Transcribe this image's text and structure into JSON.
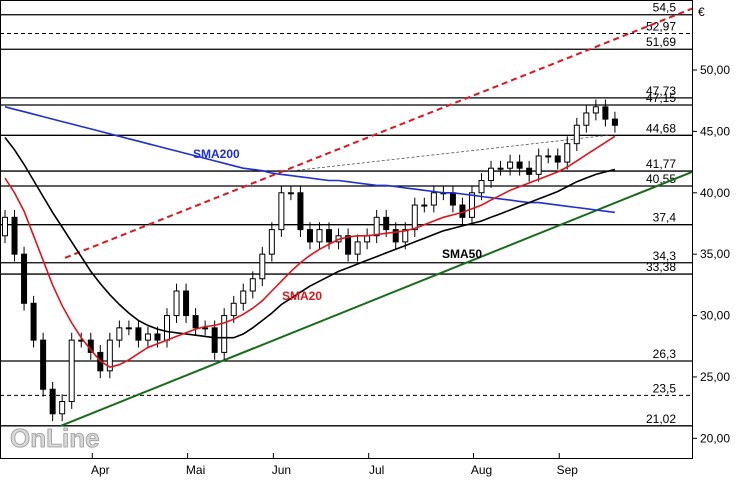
{
  "chart_data": {
    "type": "candlestick",
    "currency": "€",
    "watermark": "OnLine",
    "categories": [
      null,
      null,
      null,
      null,
      null,
      null,
      null,
      null,
      null,
      null,
      "Apr",
      null,
      null,
      null,
      null,
      null,
      null,
      null,
      null,
      null,
      "Mai",
      null,
      null,
      null,
      null,
      null,
      null,
      null,
      null,
      "Jun",
      null,
      null,
      null,
      null,
      null,
      null,
      null,
      null,
      null,
      "Jul",
      null,
      null,
      null,
      null,
      null,
      null,
      null,
      null,
      null,
      null,
      "Aug",
      null,
      null,
      null,
      null,
      null,
      null,
      null,
      null,
      "Sep",
      null,
      null,
      null,
      null,
      null
    ],
    "open": [
      36.5,
      38,
      35,
      31,
      28,
      24,
      22,
      23,
      28,
      28,
      27,
      25.5,
      28,
      29,
      29,
      28,
      28.5,
      28,
      30,
      32,
      30,
      29,
      29,
      27,
      30,
      31,
      32,
      33,
      35,
      37,
      40,
      40,
      37,
      36,
      37,
      36,
      36.5,
      35,
      36,
      36.5,
      38,
      37,
      36,
      37,
      39,
      39,
      40,
      40,
      39,
      38,
      40,
      41,
      42,
      42,
      42.5,
      42,
      41.5,
      43,
      43,
      42.5,
      44,
      45.5,
      46.5,
      47,
      46
    ],
    "high": [
      38.6,
      38.6,
      35.6,
      31.6,
      28.6,
      24.6,
      23.6,
      28.6,
      28.6,
      28.6,
      27.6,
      28.6,
      29.6,
      29.6,
      29.6,
      29.1,
      29.1,
      30.6,
      32.6,
      32.6,
      30.6,
      29.6,
      29.6,
      30.6,
      31.6,
      32.6,
      33.6,
      35.6,
      37.6,
      40.6,
      40.6,
      40.6,
      37.6,
      37.6,
      37.6,
      37.1,
      37.1,
      36.6,
      37.1,
      38.6,
      38.6,
      37.6,
      37.6,
      39.6,
      39.6,
      40.6,
      40.6,
      40.6,
      39.6,
      40.6,
      41.6,
      42.6,
      42.6,
      43.1,
      43.1,
      42.6,
      43.6,
      43.6,
      43.6,
      44.6,
      46.1,
      47.1,
      47.6,
      47.6,
      46.6
    ],
    "low": [
      35.9,
      34.4,
      30.4,
      27.4,
      23.4,
      21.4,
      21.4,
      22.4,
      27.4,
      26.4,
      24.9,
      24.9,
      27.4,
      28.4,
      27.4,
      27.4,
      27.4,
      27.4,
      29.4,
      29.4,
      28.4,
      28.4,
      26.4,
      26.4,
      29.4,
      30.4,
      31.4,
      32.4,
      34.4,
      36.4,
      39.4,
      36.4,
      35.4,
      35.4,
      35.4,
      35.4,
      34.4,
      34.4,
      35.4,
      35.9,
      36.4,
      35.4,
      35.4,
      36.4,
      38.4,
      38.4,
      39.4,
      38.4,
      37.4,
      37.4,
      39.4,
      40.4,
      41.4,
      41.4,
      41.4,
      40.9,
      40.9,
      42.4,
      41.9,
      41.9,
      43.4,
      44.9,
      45.9,
      45.4,
      44.9
    ],
    "close": [
      38,
      35,
      31,
      28,
      24,
      22,
      23,
      28,
      28,
      27,
      25.5,
      28,
      29,
      29,
      28,
      28.5,
      28,
      30,
      32,
      30,
      29,
      29,
      27,
      30,
      31,
      32,
      33,
      35,
      37,
      40,
      40,
      37,
      36,
      37,
      36,
      36.5,
      35,
      36,
      36.5,
      38,
      37,
      36,
      37,
      39,
      39,
      40,
      40,
      39,
      38,
      40,
      41,
      42,
      42,
      42.5,
      42,
      41.5,
      43,
      43,
      42.5,
      44,
      45.5,
      46.5,
      47,
      46,
      45.5
    ],
    "series": [
      {
        "name": "SMA200",
        "color": "#1f2fd0",
        "values": [
          47.0,
          46.8,
          46.6,
          46.4,
          46.2,
          46.0,
          45.8,
          45.6,
          45.4,
          45.2,
          45.0,
          44.8,
          44.6,
          44.4,
          44.2,
          44.0,
          43.8,
          43.6,
          43.4,
          43.2,
          43.0,
          42.8,
          42.6,
          42.4,
          42.2,
          42.0,
          41.9,
          41.8,
          41.6,
          41.5,
          41.4,
          41.3,
          41.2,
          41.1,
          41.0,
          41.0,
          40.9,
          40.8,
          40.7,
          40.6,
          40.6,
          40.5,
          40.4,
          40.3,
          40.2,
          40.1,
          40.0,
          40.0,
          39.9,
          39.8,
          39.7,
          39.6,
          39.5,
          39.4,
          39.3,
          39.2,
          39.2,
          39.1,
          39.0,
          38.9,
          38.8,
          38.7,
          38.6,
          38.5,
          38.4
        ]
      },
      {
        "name": "SMA50",
        "color": "#000000",
        "values": [
          44.5,
          43.5,
          42.3,
          41,
          39.7,
          38.4,
          37.2,
          36,
          34.8,
          33.6,
          32.6,
          31.7,
          30.9,
          30.2,
          29.6,
          29.2,
          28.9,
          28.7,
          28.6,
          28.5,
          28.4,
          28.3,
          28.2,
          28.2,
          28.2,
          28.5,
          29,
          29.6,
          30.2,
          30.9,
          31.4,
          31.9,
          32.4,
          32.8,
          33.2,
          33.6,
          33.9,
          34.2,
          34.5,
          34.8,
          35.1,
          35.4,
          35.7,
          36,
          36.3,
          36.6,
          36.9,
          37.1,
          37.3,
          37.5,
          37.7,
          38,
          38.3,
          38.6,
          38.9,
          39.2,
          39.5,
          39.8,
          40.1,
          40.5,
          40.9,
          41.2,
          41.5,
          41.7,
          41.9
        ]
      },
      {
        "name": "SMA20",
        "color": "#e0141c",
        "values": [
          41.2,
          40,
          38.5,
          36.5,
          34.5,
          32.5,
          30.8,
          29.4,
          28.2,
          27.2,
          26.3,
          25.8,
          26,
          26.4,
          26.9,
          27.4,
          27.7,
          28,
          28.3,
          28.6,
          28.9,
          29.1,
          29.2,
          29.4,
          29.7,
          30.1,
          30.6,
          31.2,
          32,
          32.8,
          33.6,
          34.3,
          34.9,
          35.4,
          35.8,
          36.2,
          36.4,
          36.5,
          36.5,
          36.6,
          36.7,
          36.8,
          36.9,
          37.1,
          37.4,
          37.7,
          38,
          38.2,
          38.4,
          38.7,
          39,
          39.4,
          39.8,
          40.2,
          40.5,
          40.8,
          41.1,
          41.4,
          41.7,
          42.1,
          42.6,
          43.1,
          43.6,
          44.1,
          44.6
        ]
      }
    ],
    "levels": [
      {
        "value": 54.5,
        "label": "54,5",
        "dashed": false
      },
      {
        "value": 52.97,
        "label": "52,97",
        "dashed": true
      },
      {
        "value": 51.69,
        "label": "51,69",
        "dashed": false
      },
      {
        "value": 47.73,
        "label": "47,73",
        "dashed": false
      },
      {
        "value": 47.15,
        "label": "47,15",
        "dashed": false
      },
      {
        "value": 44.68,
        "label": "44,68",
        "dashed": false
      },
      {
        "value": 41.77,
        "label": "41,77",
        "dashed": false
      },
      {
        "value": 40.55,
        "label": "40,55",
        "dashed": false
      },
      {
        "value": 37.4,
        "label": "37,4",
        "dashed": false
      },
      {
        "value": 34.3,
        "label": "34,3",
        "dashed": false
      },
      {
        "value": 33.38,
        "label": "33,38",
        "dashed": false
      },
      {
        "value": 26.3,
        "label": "26,3",
        "dashed": false
      },
      {
        "value": 23.5,
        "label": "23,5",
        "dashed": true
      },
      {
        "value": 21.02,
        "label": "21,02",
        "dashed": false
      }
    ],
    "trendlines": [
      {
        "color": "#e0141c",
        "dashed": true,
        "start": [
          6.3,
          34.7
        ],
        "end": [
          72.1,
          55
        ]
      },
      {
        "color": "#1a6b1a",
        "dashed": false,
        "start": [
          5.8,
          21.0
        ],
        "end": [
          72.1,
          41.7
        ]
      },
      {
        "color": "#555555",
        "dashed": true,
        "start": [
          29.1,
          41.7
        ],
        "end": [
          63.5,
          44.7
        ]
      }
    ],
    "ylim": [
      18.4,
      55.7
    ],
    "yticks": [
      {
        "value": 20,
        "label": "20,00"
      },
      {
        "value": 25,
        "label": "25,00"
      },
      {
        "value": 30,
        "label": "30,00"
      },
      {
        "value": 35,
        "label": "35,00"
      },
      {
        "value": 40,
        "label": "40,00"
      },
      {
        "value": 45,
        "label": "45,00"
      },
      {
        "value": 50,
        "label": "50,00"
      }
    ]
  }
}
